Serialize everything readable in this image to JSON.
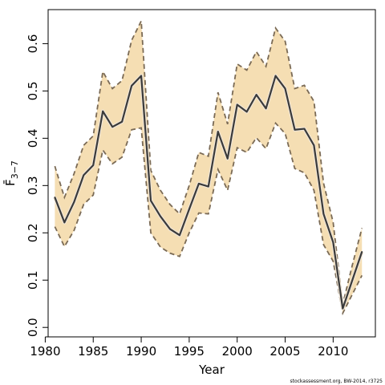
{
  "chart_data": {
    "type": "line",
    "xlabel": "Year",
    "ylabel": "F̄",
    "ylabel_subscript": "3−7",
    "footer": "stockassessment.org, BW-2014, r3725",
    "xlim": [
      1980.3,
      2014.4
    ],
    "ylim": [
      -0.02,
      0.672
    ],
    "x_ticks": [
      1980,
      1985,
      1990,
      1995,
      2000,
      2005,
      2010
    ],
    "y_ticks": [
      0.0,
      0.1,
      0.2,
      0.3,
      0.4,
      0.5,
      0.6
    ],
    "y_tick_labels": [
      "0.0",
      "0.1",
      "0.2",
      "0.3",
      "0.4",
      "0.5",
      "0.6"
    ],
    "band_color": "#f5deb3",
    "band_edge_color": "#7a6a55",
    "line_color": "#3a3a3a",
    "x": [
      1981,
      1982,
      1983,
      1984,
      1985,
      1986,
      1987,
      1988,
      1989,
      1990,
      1991,
      1992,
      1993,
      1994,
      1995,
      1996,
      1997,
      1998,
      1999,
      2000,
      2001,
      2002,
      2003,
      2004,
      2005,
      2006,
      2007,
      2008,
      2009,
      2010,
      2011,
      2012,
      2013
    ],
    "estimate": [
      0.275,
      0.222,
      0.265,
      0.322,
      0.343,
      0.457,
      0.424,
      0.435,
      0.511,
      0.532,
      0.268,
      0.235,
      0.208,
      0.195,
      0.25,
      0.304,
      0.298,
      0.414,
      0.357,
      0.471,
      0.456,
      0.492,
      0.463,
      0.532,
      0.505,
      0.418,
      0.42,
      0.385,
      0.24,
      0.18,
      0.04,
      0.1,
      0.16
    ],
    "upper": [
      0.341,
      0.275,
      0.325,
      0.385,
      0.405,
      0.541,
      0.505,
      0.522,
      0.607,
      0.648,
      0.332,
      0.29,
      0.26,
      0.24,
      0.3,
      0.37,
      0.362,
      0.497,
      0.43,
      0.557,
      0.544,
      0.583,
      0.552,
      0.633,
      0.605,
      0.505,
      0.512,
      0.478,
      0.305,
      0.222,
      0.049,
      0.132,
      0.21
    ],
    "lower": [
      0.213,
      0.171,
      0.205,
      0.26,
      0.28,
      0.375,
      0.346,
      0.36,
      0.418,
      0.422,
      0.2,
      0.17,
      0.157,
      0.15,
      0.2,
      0.242,
      0.24,
      0.334,
      0.29,
      0.38,
      0.37,
      0.401,
      0.378,
      0.432,
      0.41,
      0.336,
      0.327,
      0.29,
      0.175,
      0.14,
      0.03,
      0.07,
      0.11
    ]
  }
}
